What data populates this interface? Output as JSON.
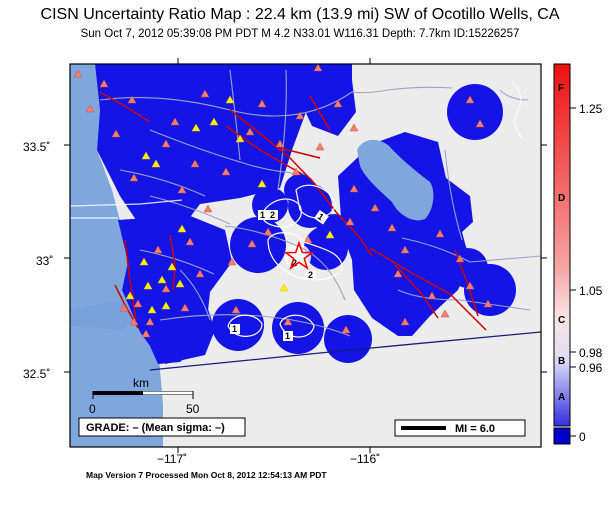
{
  "header": {
    "title": "CISN Uncertainty Ratio Map : 22.4 km (13.9 mi) SW of Ocotillo Wells, CA",
    "subtitle": "Sun Oct  7, 2012 05:39:08 PM PDT    M 4.2    N33.01 W116.31    Depth: 7.7km    ID:15226257"
  },
  "map": {
    "lat_ticks": [
      "33.5˚",
      "33˚",
      "32.5˚"
    ],
    "lon_ticks": [
      "−117˚",
      "−116˚"
    ],
    "scale_bar": {
      "unit": "km",
      "labels": [
        "0",
        "50"
      ]
    },
    "grade_box": "GRADE: – (Mean sigma: –)",
    "mi_legend": "MI = 6.0",
    "contour_labels": [
      "1",
      "2",
      "2",
      "1",
      "1",
      "1",
      "1",
      "2"
    ],
    "colors": {
      "ocean": "#7da7dd",
      "low_uncertainty": "#1414e6",
      "land": "#ececec",
      "fault": "#cc0000",
      "station_triangle": "#ff7d6e",
      "alt_station": "#ffee00",
      "epicenter_star": "#ff0000"
    }
  },
  "colorbar": {
    "labels": [
      "1.25",
      "1.05",
      "0.98",
      "0.96",
      "0"
    ],
    "grades": [
      "F",
      "D",
      "C",
      "B",
      "A"
    ]
  },
  "footer": {
    "text": "Map Version 7 Processed Mon Oct  8, 2012 12:54:13 AM PDT"
  }
}
